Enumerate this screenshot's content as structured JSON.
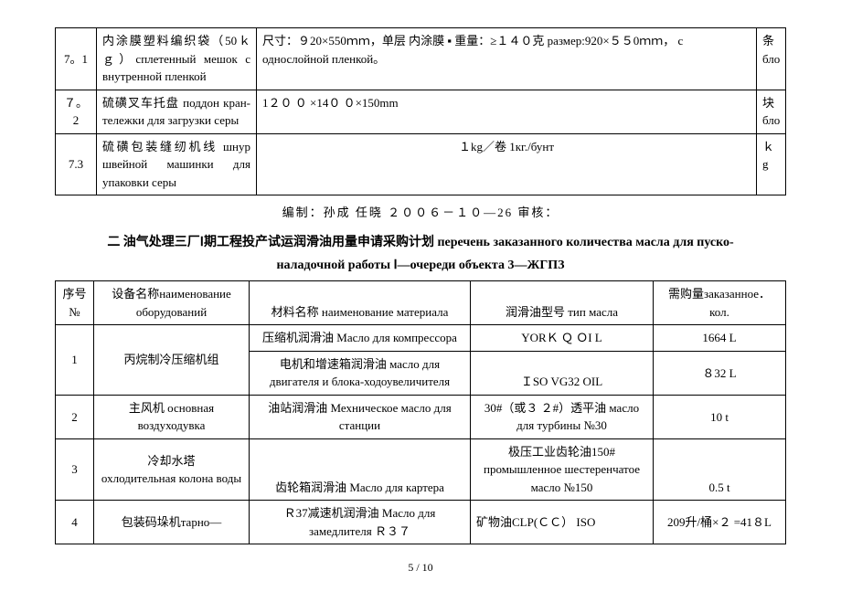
{
  "table1": {
    "rows": [
      {
        "num": "7。1",
        "name": "内涂膜塑料编织袋（50ｋｇ）сплетенный мешок с внутренной пленкой",
        "spec": "尺寸：９20×550ｍｍ，单层 内涂膜 ▪ 重量：≥１４０克  размер:920×５５0ｍｍ， с однослойной пленкой。",
        "unit": "条\nбло"
      },
      {
        "num": "７。2",
        "name": "硫磺叉车托盘 поддон кран-тележки для загрузки серы",
        "spec": "1２０ ０ ×14０ ０×150mm",
        "unit": "块\nбло"
      },
      {
        "num": "7.3",
        "name": "硫磺包装缝纫机线  шнур швейной машинки для упаковки серы",
        "spec": "１kg／卷   1кг./бунт",
        "unit": "ｋg"
      }
    ]
  },
  "footer": "编制：孙成       任晓     ２００６－１０—26          审核：",
  "section_title_line1": "二  油气处理三厂Ⅰ期工程投产试运润滑油用量申请采购计划   перечень  заказанного  количества  масла  для пуско-",
  "section_title_line2": "наладочной  работы  Ⅰ—очереди объекта 3—ЖГПЗ",
  "table2": {
    "headers": {
      "seq": "序号\n№",
      "equip": "设备名称наименование оборудований",
      "mat": "材料名称   наименование материала",
      "type": "润滑油型号 тип масла",
      "qty": "需购量заказанное．кол."
    },
    "rows": [
      {
        "seq": "1",
        "equip": "丙烷制冷压缩机组",
        "mat1": "压缩机润滑油 Масло для компрессора",
        "type1": "YORＫ Ｑ  ＯI  L",
        "qty1": "1664   L",
        "mat2": "电机和增速箱润滑油 масло для двигателя и блока-ходоувеличителя",
        "type2": "ＩSO VG32 OIL",
        "qty2": "８32 L"
      },
      {
        "seq": "2",
        "equip": "主风机 основная воздуходувка",
        "mat": "油站润滑油 Мехническое масло для    станции",
        "type": "30#（或３ ２#）透平油  масло для турбины   №30",
        "qty": "10 t"
      },
      {
        "seq": "3",
        "equip": "冷却水塔\nохлодительная колона воды",
        "mat": "齿轮箱润滑油 Масло для картера",
        "type": "极压工业齿轮油150#\nпромышленное шестеренчатое масло  №150",
        "qty": "0.5 t"
      },
      {
        "seq": "4",
        "equip": "包装码垛机тарно—",
        "mat": "Ｒ37减速机润滑油  Масло для замедлителя Ｒ３７",
        "type": "矿物油CLP(ＣＣ）        ISO",
        "qty": "209升/桶×２ =41８L"
      }
    ]
  },
  "page_num": "5 / 10"
}
